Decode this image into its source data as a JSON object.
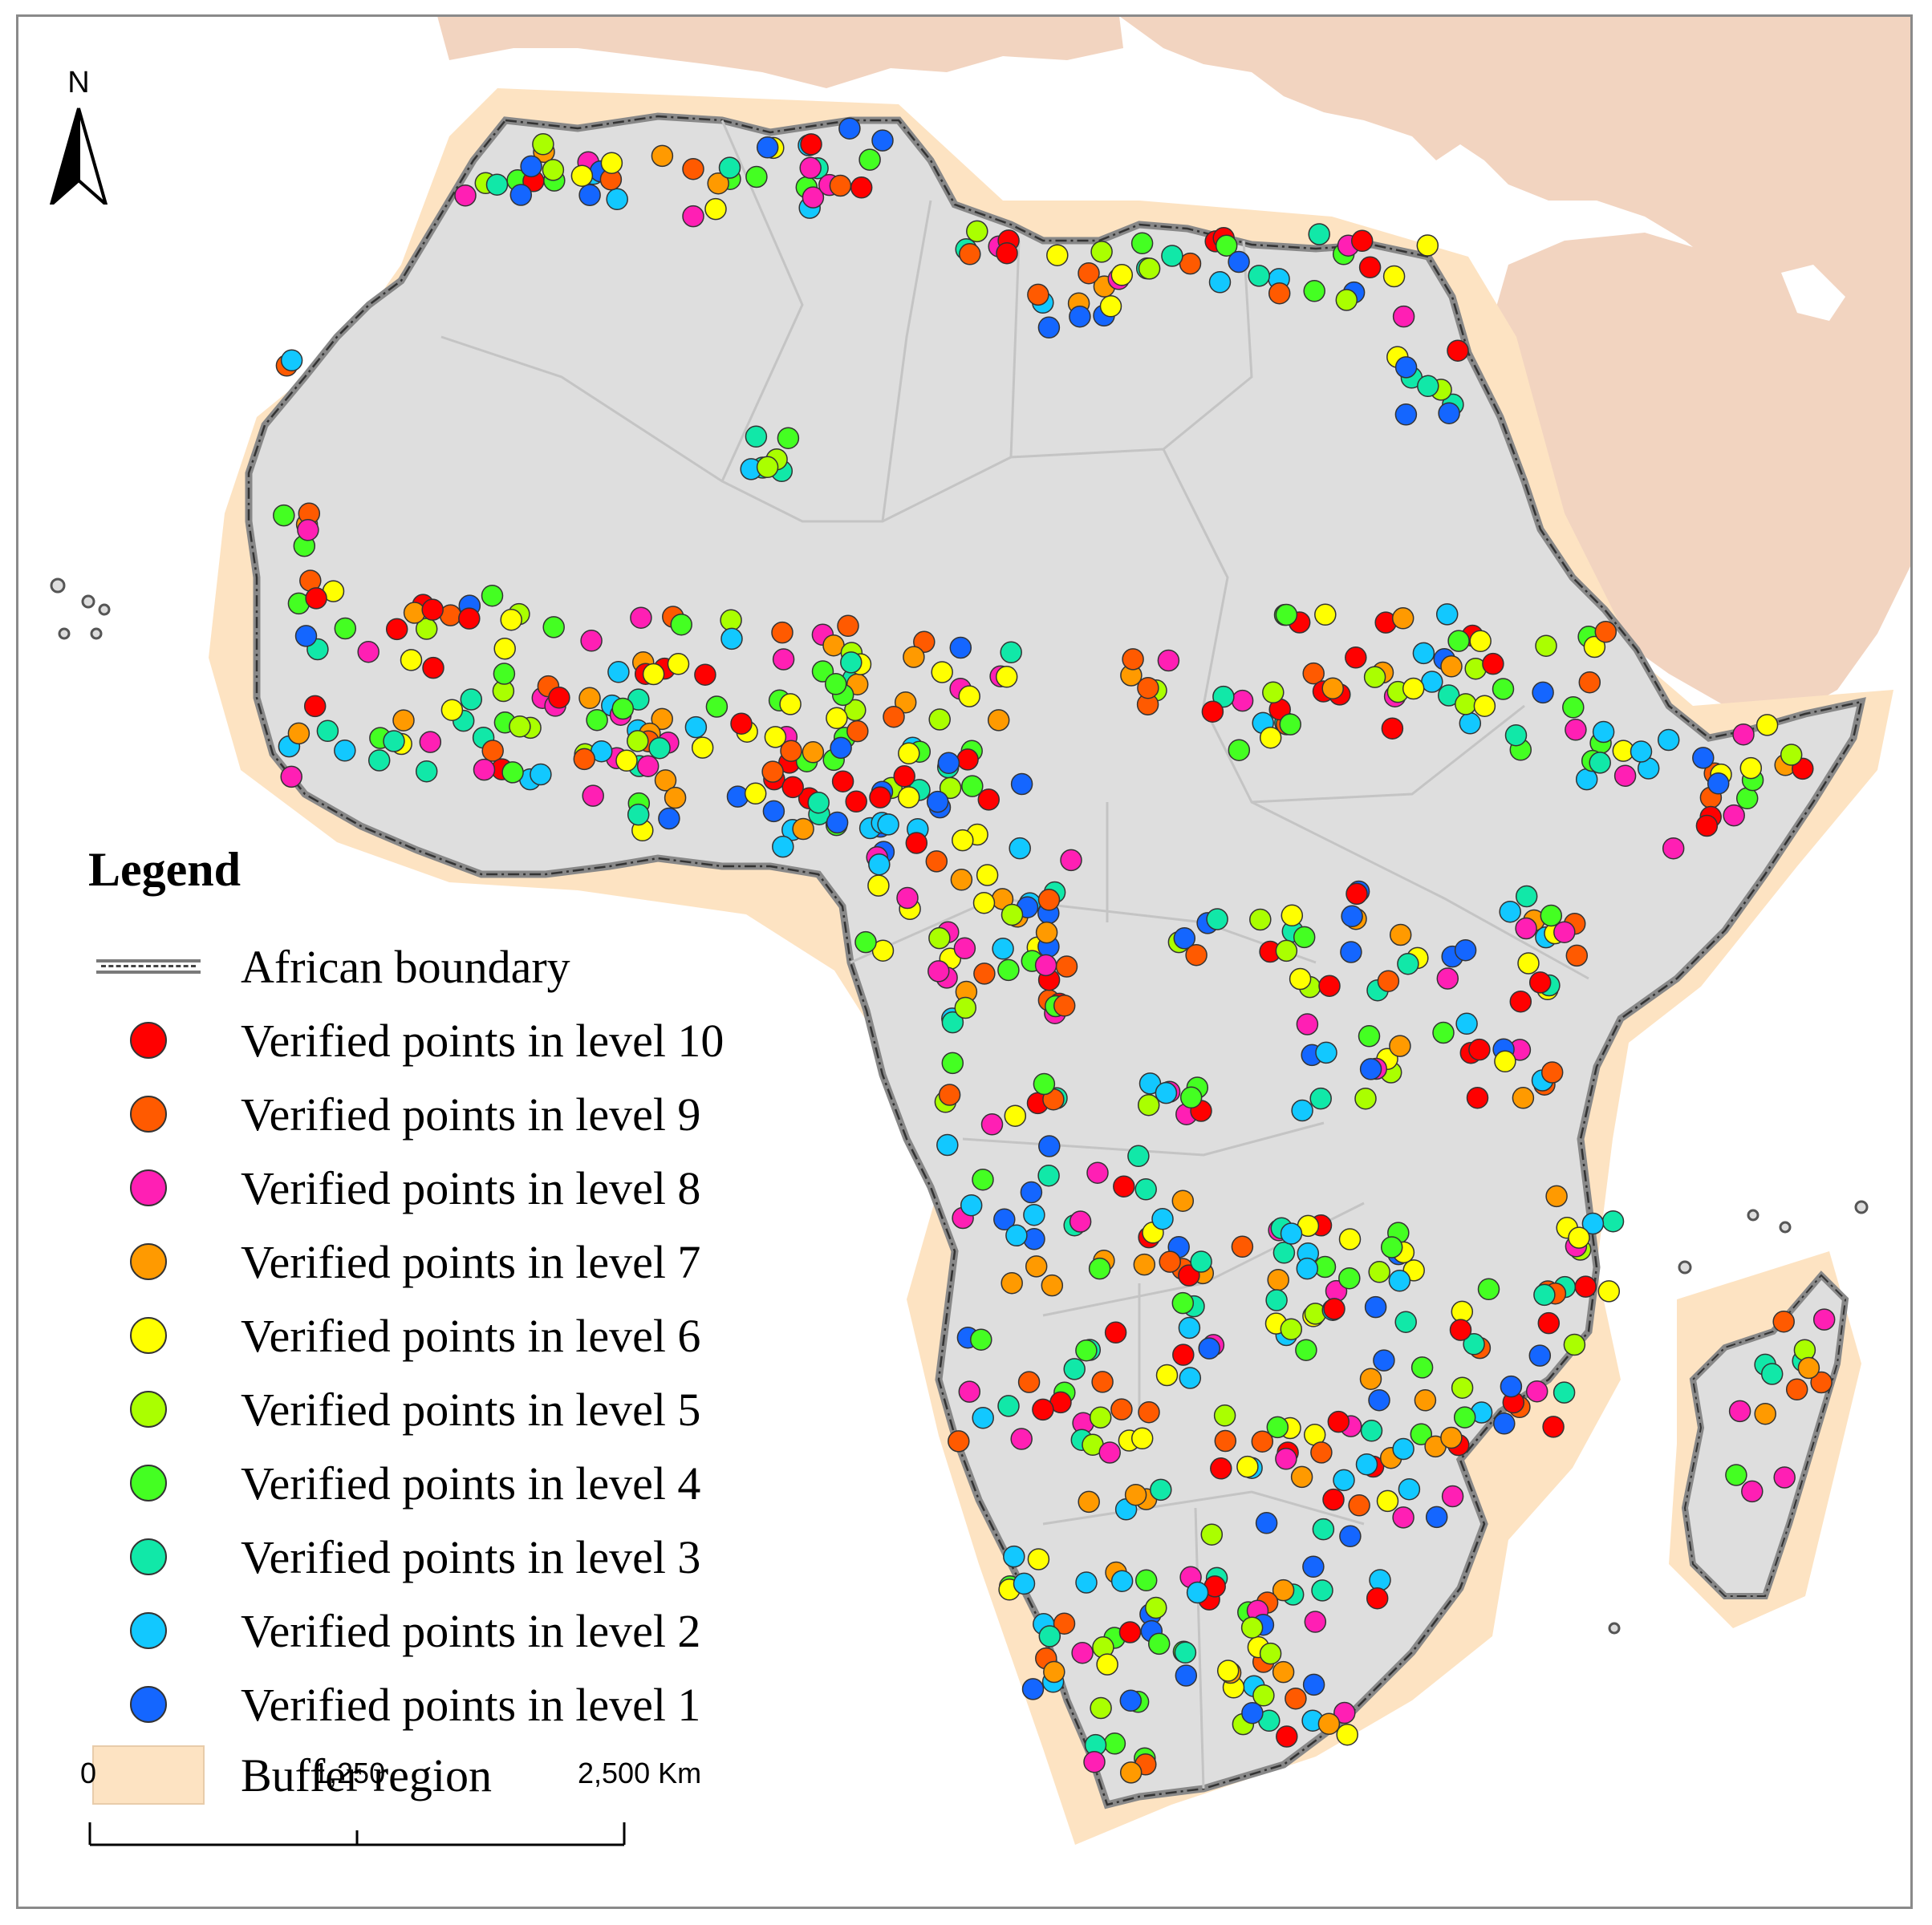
{
  "legend": {
    "title": "Legend",
    "items": [
      {
        "label": "African boundary",
        "kind": "line"
      },
      {
        "label": "Verified points in level 10",
        "color": "#ff0000"
      },
      {
        "label": "Verified points in level 9",
        "color": "#ff5a00"
      },
      {
        "label": "Verified points in level 8",
        "color": "#ff1fb4"
      },
      {
        "label": "Verified points in level 7",
        "color": "#ff9a00"
      },
      {
        "label": "Verified points in level 6",
        "color": "#ffff00"
      },
      {
        "label": "Verified points in level 5",
        "color": "#aaff00"
      },
      {
        "label": "Verified points in level 4",
        "color": "#44ff22"
      },
      {
        "label": "Verified points in level 3",
        "color": "#11e8a8"
      },
      {
        "label": "Verified points in level 2",
        "color": "#12c8ff"
      },
      {
        "label": "Verified points in level 1",
        "color": "#1466ff"
      },
      {
        "label": "Buffer region",
        "kind": "box",
        "color": "#fde3c2"
      }
    ]
  },
  "north_arrow": {
    "label": "N"
  },
  "scale_bar": {
    "labels": [
      "0",
      "1,250",
      "2,500 Km"
    ]
  },
  "colors": {
    "land": "#dedede",
    "other_land": "#f2d4c0",
    "buffer": "#fde3c2",
    "boundary": "#555555",
    "sea": "#ffffff"
  }
}
